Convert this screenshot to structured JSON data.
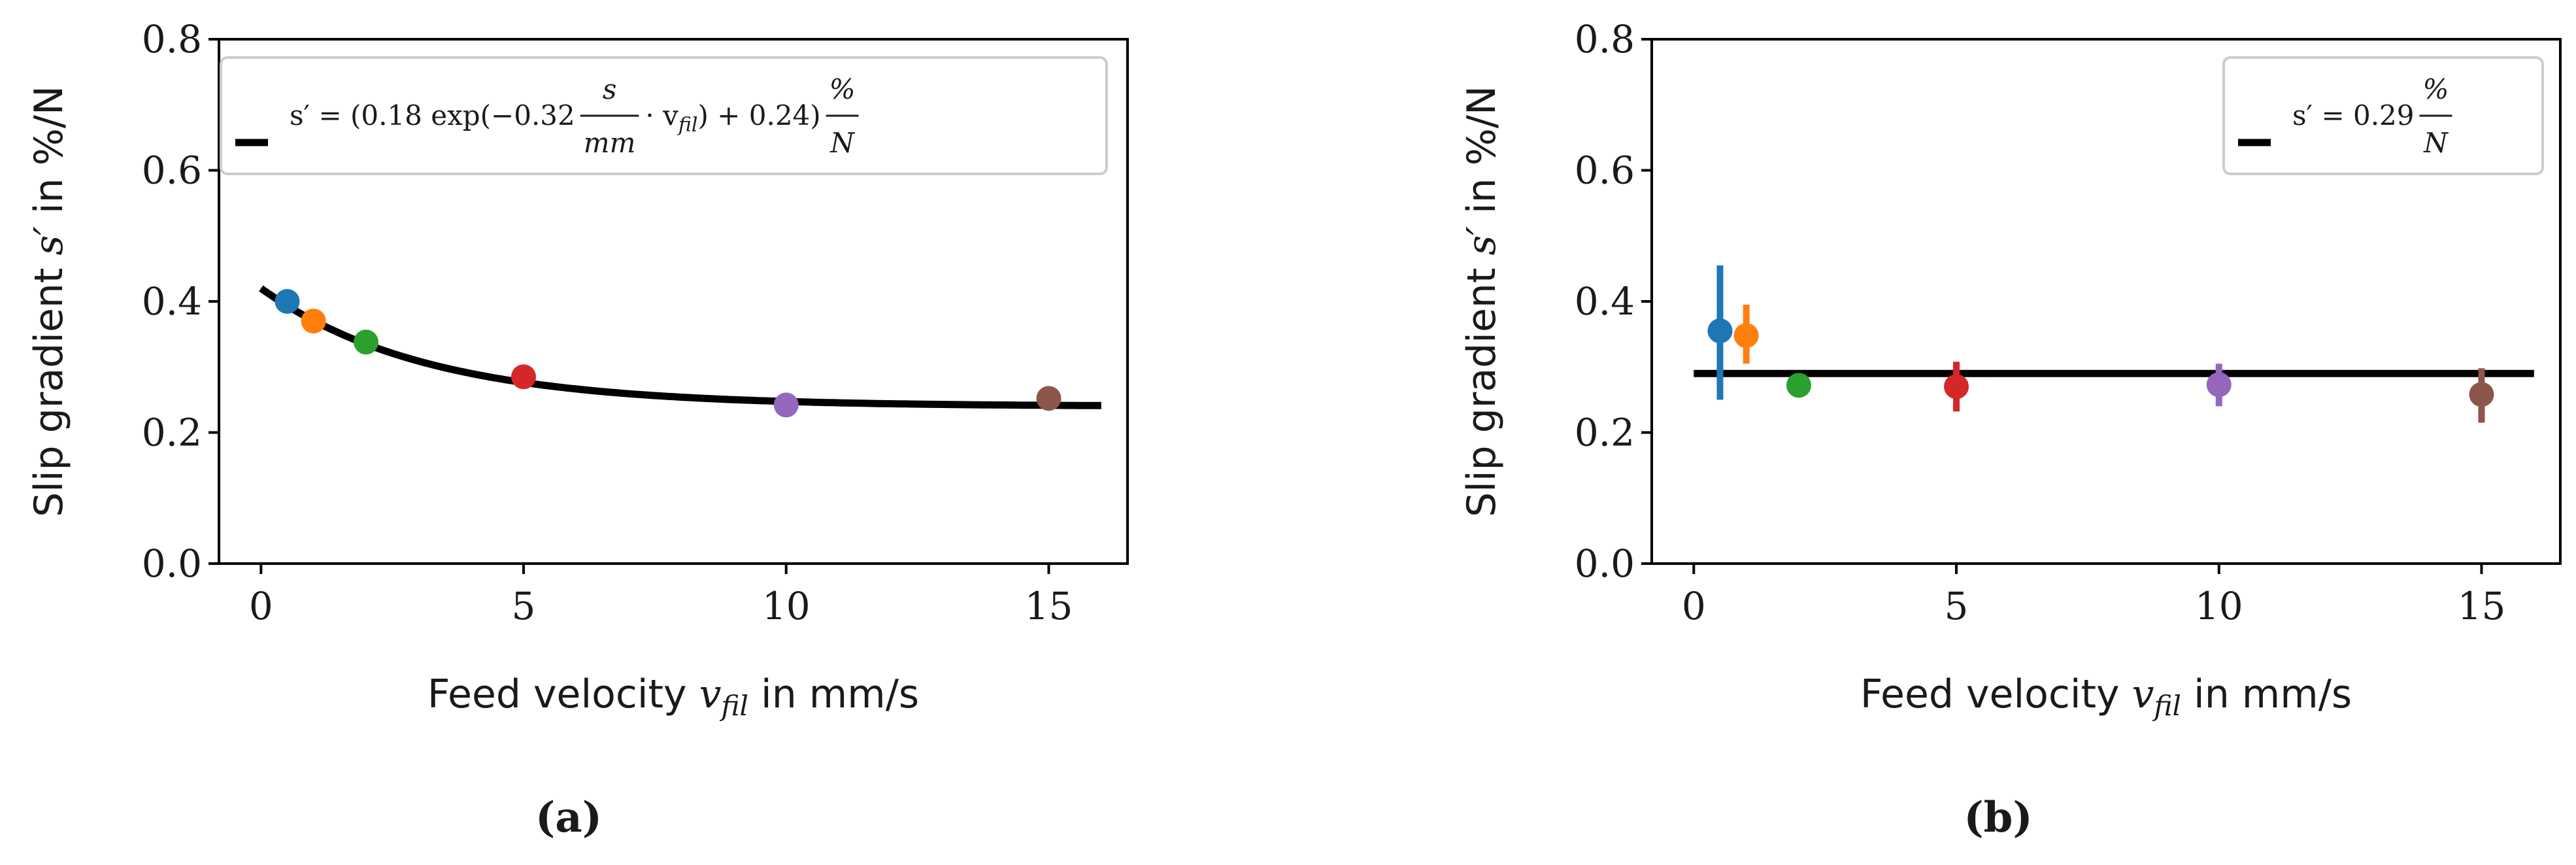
{
  "chart_data": [
    {
      "type": "scatter",
      "panel_label": "(a)",
      "xlabel": {
        "prefix": "Feed velocity ",
        "var": "v",
        "sub": "fil",
        "suffix": " in mm/s"
      },
      "ylabel": {
        "prefix": "Slip gradient ",
        "var": "s′",
        "suffix": " in %/N"
      },
      "xlim": [
        -0.8,
        16.5
      ],
      "ylim": [
        0.0,
        0.8
      ],
      "xticks": [
        0,
        5,
        10,
        15
      ],
      "yticks": [
        0.0,
        0.2,
        0.4,
        0.6,
        0.8
      ],
      "xtick_labels": [
        "0",
        "5",
        "10",
        "15"
      ],
      "ytick_labels": [
        "0.0",
        "0.2",
        "0.4",
        "0.6",
        "0.8"
      ],
      "legend_position": "top",
      "legend_label": "s′ = (0.18 exp(−0.32 s/mm · v_fil) + 0.24) %/N",
      "legend_parts": {
        "lhs": "s′ = (0.18 exp(−0.32",
        "frac_num": "s",
        "frac_den": "mm",
        "mid": "· v",
        "mid_sub": "fil",
        "tail": ") + 0.24)",
        "unit_num": "%",
        "unit_den": "N"
      },
      "fit": {
        "kind": "exp",
        "a": 0.18,
        "b": -0.32,
        "c": 0.24,
        "x_range": [
          0,
          16
        ]
      },
      "points": [
        {
          "x": 0.5,
          "y": 0.4,
          "color": "#1f77b4"
        },
        {
          "x": 1.0,
          "y": 0.37,
          "color": "#ff7f0e"
        },
        {
          "x": 2.0,
          "y": 0.338,
          "color": "#2ca02c"
        },
        {
          "x": 5.0,
          "y": 0.285,
          "color": "#d62728"
        },
        {
          "x": 10.0,
          "y": 0.242,
          "color": "#9467bd"
        },
        {
          "x": 15.0,
          "y": 0.252,
          "color": "#8c564b"
        }
      ]
    },
    {
      "type": "scatter",
      "panel_label": "(b)",
      "xlabel": {
        "prefix": "Feed velocity ",
        "var": "v",
        "sub": "fil",
        "suffix": " in mm/s"
      },
      "ylabel": {
        "prefix": "Slip gradient ",
        "var": "s′",
        "suffix": " in %/N"
      },
      "xlim": [
        -0.8,
        16.5
      ],
      "ylim": [
        0.0,
        0.8
      ],
      "xticks": [
        0,
        5,
        10,
        15
      ],
      "yticks": [
        0.0,
        0.2,
        0.4,
        0.6,
        0.8
      ],
      "xtick_labels": [
        "0",
        "5",
        "10",
        "15"
      ],
      "ytick_labels": [
        "0.0",
        "0.2",
        "0.4",
        "0.6",
        "0.8"
      ],
      "legend_position": "top-right",
      "legend_label": "s′ = 0.29 %/N",
      "legend_parts": {
        "lhs": "s′ = 0.29",
        "unit_num": "%",
        "unit_den": "N"
      },
      "fit": {
        "kind": "const",
        "c": 0.29,
        "x_range": [
          0,
          16
        ]
      },
      "points": [
        {
          "x": 0.5,
          "y": 0.355,
          "err": [
            0.25,
            0.455
          ],
          "color": "#1f77b4"
        },
        {
          "x": 1.0,
          "y": 0.348,
          "err": [
            0.305,
            0.395
          ],
          "color": "#ff7f0e"
        },
        {
          "x": 2.0,
          "y": 0.272,
          "err": [
            0.26,
            0.285
          ],
          "color": "#2ca02c"
        },
        {
          "x": 5.0,
          "y": 0.27,
          "err": [
            0.232,
            0.308
          ],
          "color": "#d62728"
        },
        {
          "x": 10.0,
          "y": 0.273,
          "err": [
            0.24,
            0.305
          ],
          "color": "#9467bd"
        },
        {
          "x": 15.0,
          "y": 0.258,
          "err": [
            0.215,
            0.298
          ],
          "color": "#8c564b"
        }
      ]
    }
  ]
}
